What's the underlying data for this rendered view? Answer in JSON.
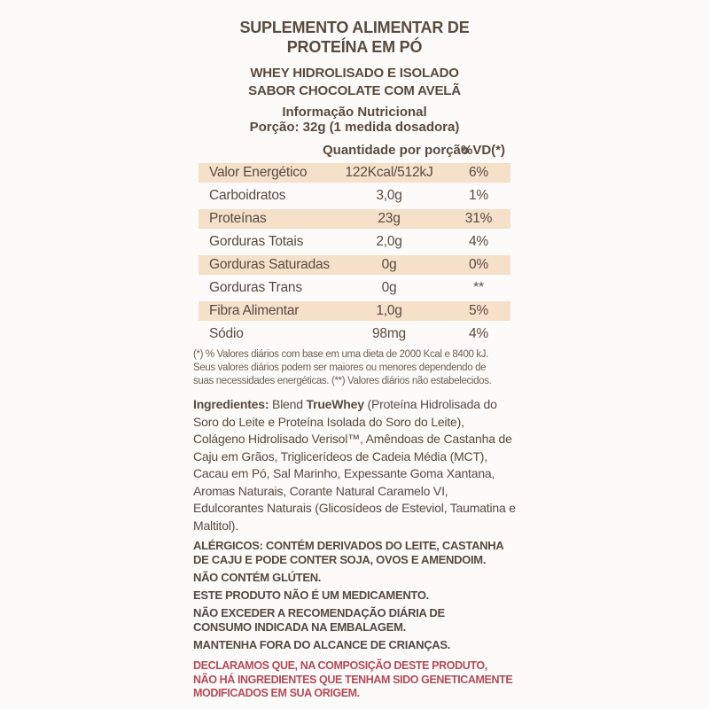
{
  "header": {
    "title": "SUPLEMENTO ALIMENTAR DE\nPROTEÍNA EM PÓ",
    "subtitle": "WHEY HIDROLISADO E ISOLADO\nSABOR CHOCOLATE COM AVELÃ",
    "info_title": "Informação Nutricional",
    "portion": "Porção: 32g (1 medida dosadora)"
  },
  "table": {
    "col_quantity": "Quantidade por porção",
    "col_vd": "%VD(*)",
    "rows": [
      {
        "name": "Valor Energético",
        "qty": "122Kcal/512kJ",
        "vd": "6%"
      },
      {
        "name": "Carboidratos",
        "qty": "3,0g",
        "vd": "1%"
      },
      {
        "name": "Proteínas",
        "qty": "23g",
        "vd": "31%"
      },
      {
        "name": "Gorduras Totais",
        "qty": "2,0g",
        "vd": "4%"
      },
      {
        "name": "Gorduras Saturadas",
        "qty": "0g",
        "vd": "0%"
      },
      {
        "name": "Gorduras Trans",
        "qty": "0g",
        "vd": "**"
      },
      {
        "name": "Fibra Alimentar",
        "qty": "1,0g",
        "vd": "5%"
      },
      {
        "name": "Sódio",
        "qty": "98mg",
        "vd": "4%"
      }
    ],
    "footnote": "(*) % Valores diários com base em uma dieta de 2000 Kcal e 8400 kJ.\nSeus valores diários podem ser maiores ou menores dependendo de\nsuas necessidades energéticas. (**) Valores diários não estabelecidos."
  },
  "ingredients": {
    "label": "Ingredientes:",
    "lead": " Blend ",
    "brand": "TrueWhey",
    "rest": " (Proteína Hidrolisada do Soro do Leite e Proteína Isolada do Soro do Leite), Colágeno Hidrolisado Verisol™, Amêndoas de Castanha de Caju em Grãos, Triglicerídeos de Cadeia Média (MCT), Cacau em Pó, Sal Marinho, Expessante Goma Xantana, Aromas Naturais, Corante Natural Caramelo VI, Edulcorantes Naturais (Glicosídeos de Esteviol, Taumatina e Maltitol)."
  },
  "warnings": [
    "ALÉRGICOS: CONTÉM DERIVADOS DO LEITE, CASTANHA\nDE CAJU E PODE CONTER SOJA, OVOS E AMENDOIM.",
    "NÃO CONTÉM GLÚTEN.",
    "ESTE PRODUTO NÃO É UM MEDICAMENTO.",
    "NÃO EXCEDER A RECOMENDAÇÃO DIÁRIA DE\nCONSUMO INDICADA NA EMBALAGEM.",
    "MANTENHA FORA DO ALCANCE DE CRIANÇAS."
  ],
  "gmo_declaration": "DECLARAMOS QUE, NA COMPOSIÇÃO DESTE PRODUTO,\nNÃO HÁ INGREDIENTES QUE TENHAM SIDO GENETICAMENTE\nMODIFICADOS EM SUA ORIGEM.",
  "colors": {
    "text_brown": "#5a4a3e",
    "warning_brown": "#57493f",
    "footnote_brown": "#6d5f55",
    "shaded_row": "#f5e0ca",
    "declaration_red": "#b54a57",
    "background": "#fcfbfa"
  }
}
